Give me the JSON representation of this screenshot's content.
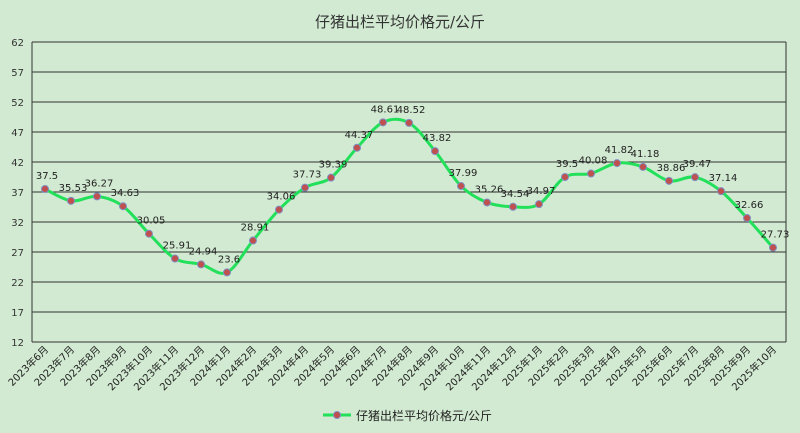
{
  "chart_data": {
    "type": "line",
    "title": "仔猪出栏平均价格元/公斤",
    "xlabel": "",
    "ylabel": "",
    "ylim": [
      12,
      62
    ],
    "yticks": [
      12,
      17,
      22,
      27,
      32,
      37,
      42,
      47,
      52,
      57,
      62
    ],
    "grid": true,
    "smooth": true,
    "legend_position": "bottom",
    "categories": [
      "2023年6月",
      "2023年7月",
      "2023年8月",
      "2023年9月",
      "2023年10月",
      "2023年11月",
      "2023年12月",
      "2024年1月",
      "2024年2月",
      "2024年3月",
      "2024年4月",
      "2024年5月",
      "2024年6月",
      "2024年7月",
      "2024年8月",
      "2024年9月",
      "2024年10月",
      "2024年11月",
      "2024年12月",
      "2025年1月",
      "2025年2月",
      "2025年3月",
      "2025年4月",
      "2025年5月",
      "2025年6月",
      "2025年7月",
      "2025年8月",
      "2025年9月",
      "2025年10月"
    ],
    "series": [
      {
        "name": "仔猪出栏平均价格元/公斤",
        "values": [
          37.5,
          35.53,
          36.27,
          34.63,
          30.05,
          25.91,
          24.94,
          23.6,
          28.91,
          34.06,
          37.73,
          39.39,
          44.37,
          48.61,
          48.52,
          43.82,
          37.99,
          35.26,
          34.54,
          34.97,
          39.5,
          40.08,
          41.82,
          41.18,
          38.86,
          39.47,
          37.14,
          32.66,
          27.73
        ],
        "line_color": "#22e05a",
        "marker_color": "#c0504d"
      }
    ]
  }
}
